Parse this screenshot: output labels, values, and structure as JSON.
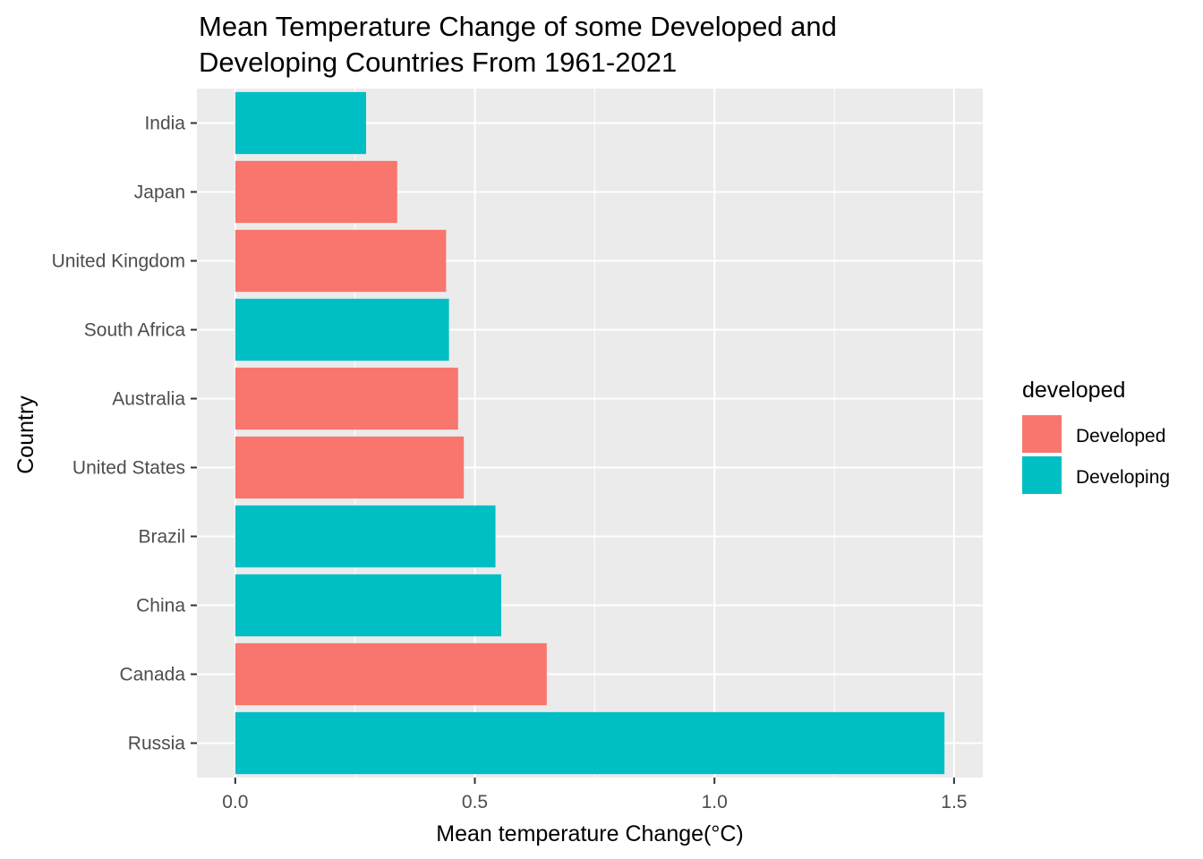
{
  "chart_data": {
    "type": "bar",
    "orientation": "horizontal",
    "title": "Mean Temperature Change of some Developed and Developing Countries From 1961-2021",
    "title_lines": [
      "Mean Temperature Change of some Developed and",
      "Developing Countries From 1961-2021"
    ],
    "xlabel": "Mean temperature Change(°C)",
    "ylabel": "Country",
    "xlim": [
      -0.08,
      1.56
    ],
    "xticks": [
      0.0,
      0.5,
      1.0,
      1.5
    ],
    "xtick_labels": [
      "0.0",
      "0.5",
      "1.0",
      "1.5"
    ],
    "grid": true,
    "legend": {
      "title": "developed",
      "position": "right",
      "items": [
        {
          "label": "Developed",
          "color": "#F8766D"
        },
        {
          "label": "Developing",
          "color": "#00BFC4"
        }
      ]
    },
    "categories": [
      "India",
      "Japan",
      "United Kingdom",
      "South Africa",
      "Australia",
      "United States",
      "Brazil",
      "China",
      "Canada",
      "Russia"
    ],
    "values": [
      0.273,
      0.338,
      0.44,
      0.446,
      0.465,
      0.477,
      0.543,
      0.555,
      0.65,
      1.48
    ],
    "groups": [
      "Developing",
      "Developed",
      "Developed",
      "Developing",
      "Developed",
      "Developed",
      "Developing",
      "Developing",
      "Developed",
      "Developing"
    ]
  }
}
